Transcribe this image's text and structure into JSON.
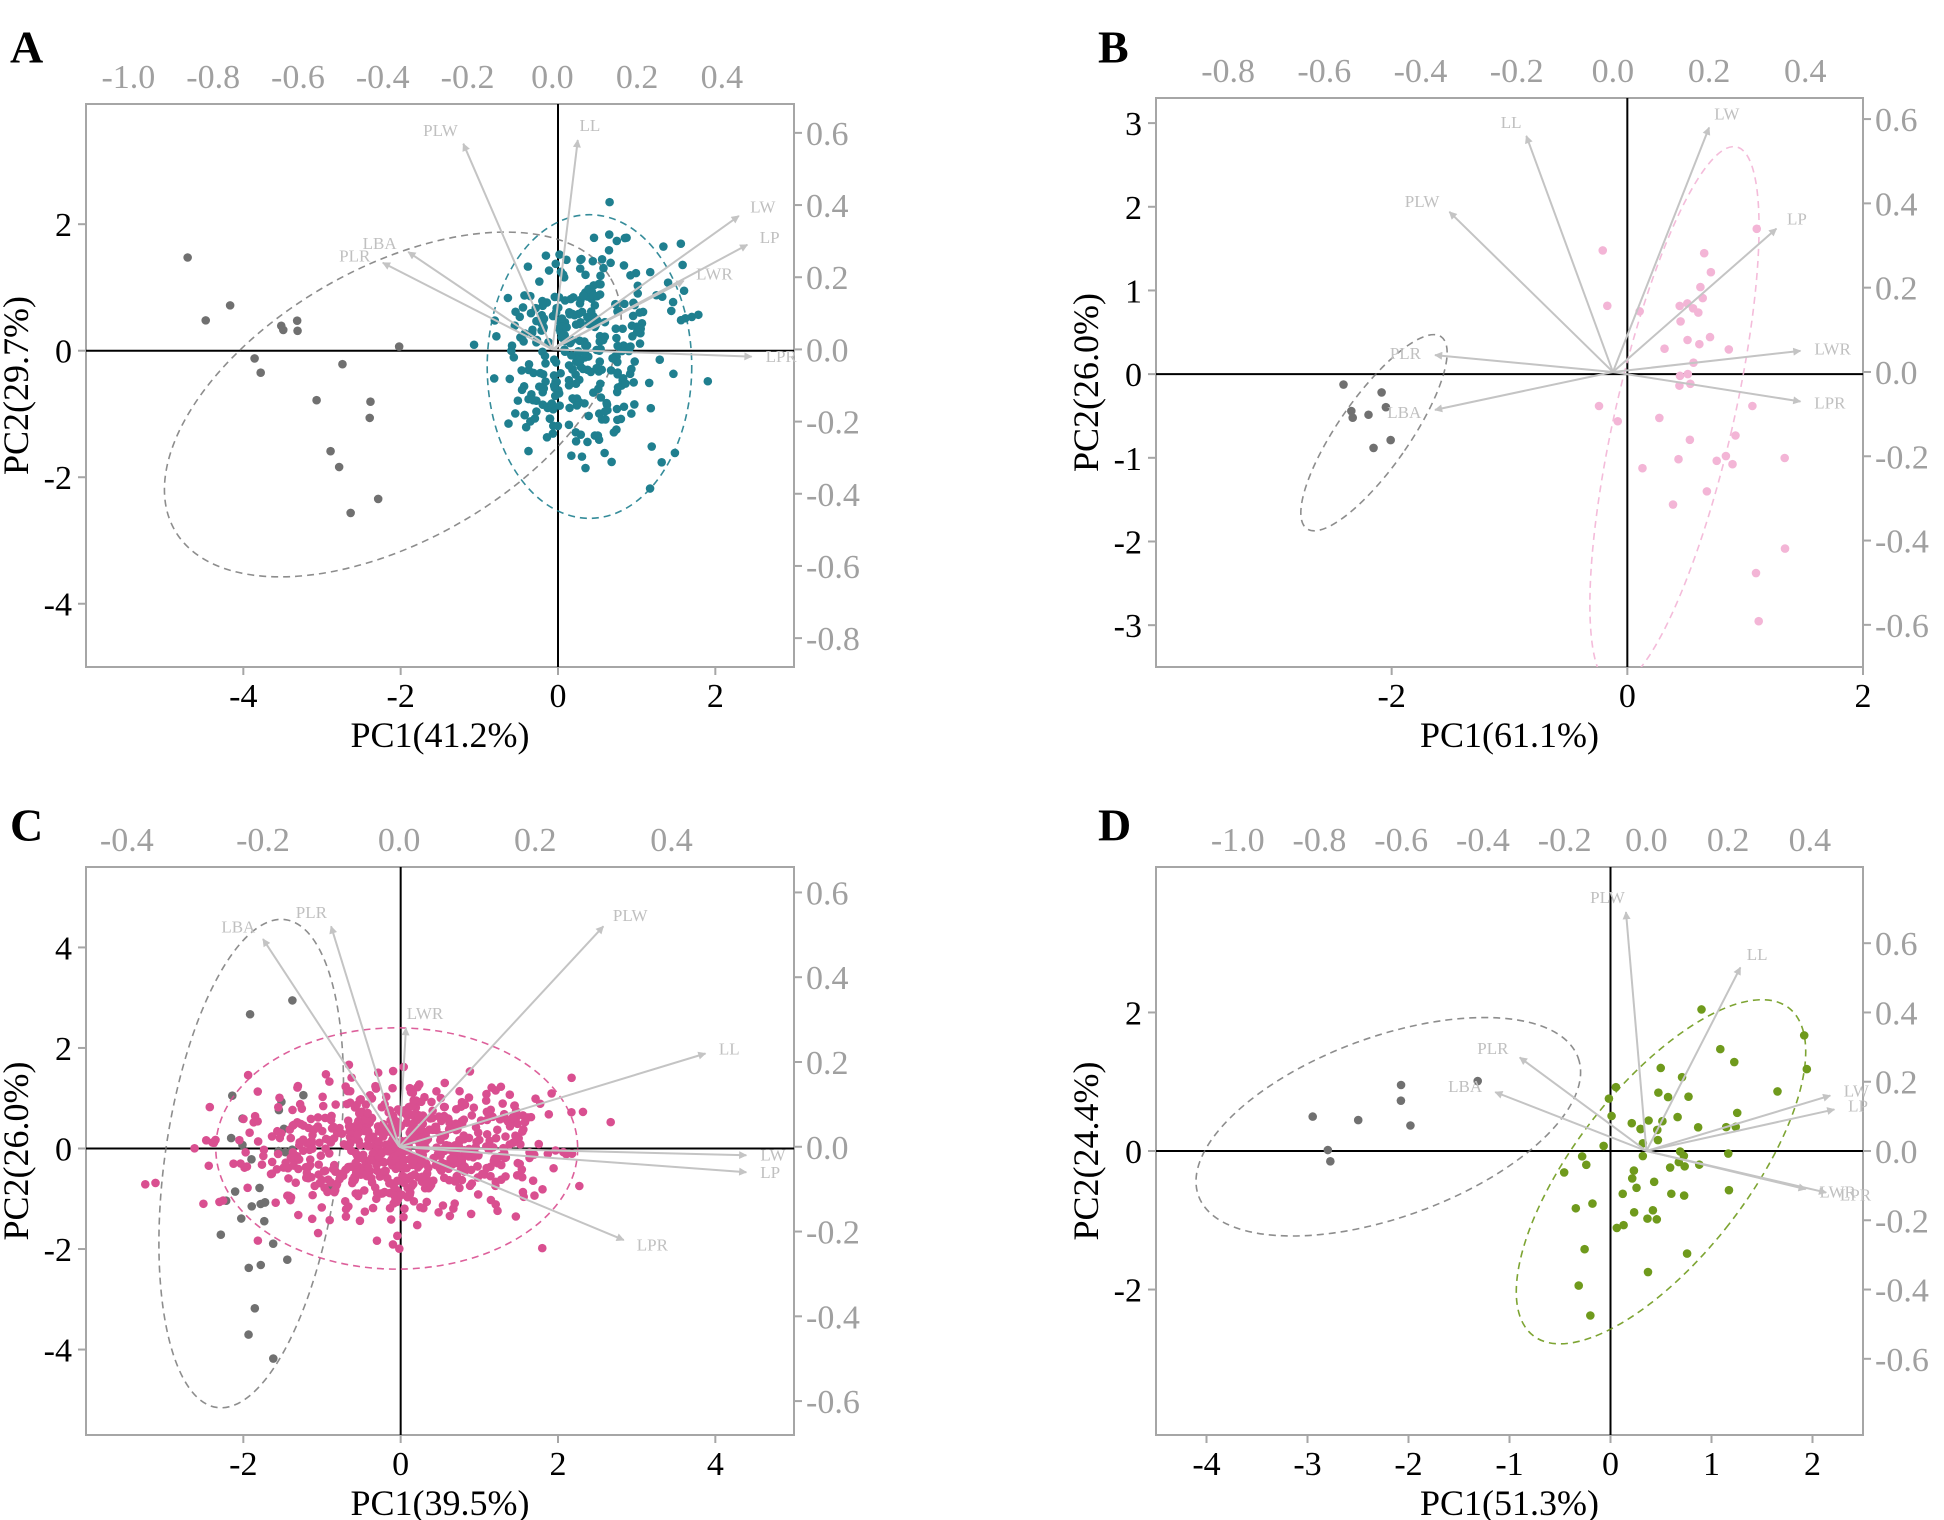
{
  "figure": {
    "panels": [
      "A",
      "B",
      "C",
      "D"
    ]
  },
  "colors": {
    "frame": "#a6a6a6",
    "zero_line": "#000000",
    "arrow": "#c4c4c4",
    "outgroup": "#707070",
    "A": "#1f7f8f",
    "B": "#f3b5d6",
    "C": "#d94f90",
    "D": "#6f9a1c"
  },
  "chart_data": [
    {
      "panel": "A",
      "type": "scatter",
      "title": "",
      "xlabel": "PC1(41.2%)",
      "ylabel": "PC2(29.7%)",
      "xlim": [
        -6,
        3
      ],
      "ylim": [
        -5,
        3.9
      ],
      "x_ticks": [
        "-4",
        "-2",
        "0",
        "2"
      ],
      "y_ticks": [
        "-4",
        "-2",
        "0",
        "2"
      ],
      "loading_xlim": [
        -1.1,
        0.57
      ],
      "loading_ylim": [
        -0.88,
        0.68
      ],
      "top_ticks": [
        "-1.0",
        "-0.8",
        "-0.6",
        "-0.4",
        "-0.2",
        "0.0",
        "0.2",
        "0.4"
      ],
      "right_ticks": [
        "0.6",
        "0.4",
        "0.2",
        "0.0",
        "-0.2",
        "-0.4",
        "-0.6",
        "-0.8"
      ],
      "groups": [
        {
          "name": "outgroup",
          "n": 18,
          "center": [
            -3.2,
            -0.3
          ],
          "sd": [
            0.6,
            1.0
          ],
          "corr": -0.5,
          "ellipse": {
            "cx": -2.1,
            "cy": -0.85,
            "rx": 3.2,
            "ry": 2.15,
            "angle": -30
          }
        },
        {
          "name": "main",
          "n": 330,
          "center": [
            0.3,
            0.0
          ],
          "sd": [
            0.55,
            0.8
          ],
          "corr": 0.05,
          "ellipse": {
            "cx": 0.4,
            "cy": -0.25,
            "rx": 1.3,
            "ry": 2.4,
            "angle": 0
          }
        }
      ],
      "loadings": [
        {
          "label": "PLW",
          "x": -0.21,
          "y": 0.57
        },
        {
          "label": "LL",
          "x": 0.06,
          "y": 0.58
        },
        {
          "label": "LW",
          "x": 0.44,
          "y": 0.37
        },
        {
          "label": "LP",
          "x": 0.46,
          "y": 0.29
        },
        {
          "label": "LWR",
          "x": 0.31,
          "y": 0.19
        },
        {
          "label": "LBA",
          "x": -0.34,
          "y": 0.27
        },
        {
          "label": "PLR",
          "x": -0.4,
          "y": 0.24
        },
        {
          "label": "LPR",
          "x": 0.47,
          "y": -0.02
        }
      ]
    },
    {
      "panel": "B",
      "type": "scatter",
      "title": "",
      "xlabel": "PC1(61.1%)",
      "ylabel": "PC2(26.0%)",
      "xlim": [
        -4,
        2
      ],
      "ylim": [
        -3.5,
        3.3
      ],
      "x_ticks": [
        "-2",
        "0",
        "2"
      ],
      "y_ticks": [
        "-3",
        "-2",
        "-1",
        "0",
        "1",
        "2",
        "3"
      ],
      "loading_xlim": [
        -0.95,
        0.52
      ],
      "loading_ylim": [
        -0.7,
        0.65
      ],
      "top_ticks": [
        "-0.8",
        "-0.6",
        "-0.4",
        "-0.2",
        "0.0",
        "0.2",
        "0.4"
      ],
      "right_ticks": [
        "0.6",
        "0.4",
        "0.2",
        "0.0",
        "-0.2",
        "-0.4",
        "-0.6"
      ],
      "groups": [
        {
          "name": "outgroup",
          "n": 8,
          "center": [
            -2.2,
            -0.55
          ],
          "sd": [
            0.2,
            0.35
          ],
          "corr": -0.8,
          "ellipse": {
            "cx": -2.15,
            "cy": -0.7,
            "rx": 0.3,
            "ry": 1.4,
            "angle": 35
          }
        },
        {
          "name": "main",
          "n": 40,
          "center": [
            0.5,
            -0.1
          ],
          "sd": [
            0.4,
            1.1
          ],
          "corr": -0.3,
          "ellipse": {
            "cx": 0.4,
            "cy": -0.5,
            "rx": 0.5,
            "ry": 3.3,
            "angle": 13
          }
        }
      ],
      "loadings": [
        {
          "label": "LL",
          "x": -0.18,
          "y": 0.56
        },
        {
          "label": "LW",
          "x": 0.2,
          "y": 0.58
        },
        {
          "label": "PLW",
          "x": -0.34,
          "y": 0.38
        },
        {
          "label": "LP",
          "x": 0.34,
          "y": 0.34
        },
        {
          "label": "PLR",
          "x": -0.37,
          "y": 0.04
        },
        {
          "label": "LWR",
          "x": 0.39,
          "y": 0.05
        },
        {
          "label": "LBA",
          "x": -0.37,
          "y": -0.09
        },
        {
          "label": "LPR",
          "x": 0.39,
          "y": -0.07
        }
      ]
    },
    {
      "panel": "C",
      "type": "scatter",
      "title": "",
      "xlabel": "PC1(39.5%)",
      "ylabel": "PC2(26.0%)",
      "xlim": [
        -4,
        5
      ],
      "ylim": [
        -5.7,
        5.6
      ],
      "x_ticks": [
        "-2",
        "0",
        "2",
        "4"
      ],
      "y_ticks": [
        "-4",
        "-2",
        "0",
        "2",
        "4"
      ],
      "loading_xlim": [
        -0.46,
        0.58
      ],
      "loading_ylim": [
        -0.68,
        0.66
      ],
      "top_ticks": [
        "-0.4",
        "-0.2",
        "0.0",
        "0.2",
        "0.4"
      ],
      "right_ticks": [
        "0.6",
        "0.4",
        "0.2",
        "0.0",
        "-0.2",
        "-0.4",
        "-0.6"
      ],
      "groups": [
        {
          "name": "outgroup",
          "n": 32,
          "center": [
            -1.7,
            -0.3
          ],
          "sd": [
            0.35,
            1.6
          ],
          "corr": 0.1,
          "ellipse": {
            "cx": -1.9,
            "cy": -0.3,
            "rx": 1.1,
            "ry": 4.9,
            "angle": 8
          }
        },
        {
          "name": "main",
          "n": 700,
          "center": [
            0.0,
            0.0
          ],
          "sd": [
            0.95,
            0.65
          ],
          "corr": 0.05,
          "ellipse": {
            "cx": -0.05,
            "cy": 0.0,
            "rx": 2.3,
            "ry": 2.4,
            "angle": 0
          }
        }
      ],
      "loadings": [
        {
          "label": "LBA",
          "x": -0.2,
          "y": 0.49
        },
        {
          "label": "PLR",
          "x": -0.1,
          "y": 0.52
        },
        {
          "label": "PLW",
          "x": 0.3,
          "y": 0.52
        },
        {
          "label": "LWR",
          "x": 0.01,
          "y": 0.28
        },
        {
          "label": "LL",
          "x": 0.45,
          "y": 0.22
        },
        {
          "label": "LW",
          "x": 0.51,
          "y": -0.02
        },
        {
          "label": "LP",
          "x": 0.51,
          "y": -0.06
        },
        {
          "label": "LPR",
          "x": 0.33,
          "y": -0.22
        }
      ]
    },
    {
      "panel": "D",
      "type": "scatter",
      "title": "",
      "xlabel": "PC1(51.3%)",
      "ylabel": "PC2(24.4%)",
      "xlim": [
        -4.5,
        2.5
      ],
      "ylim": [
        -4.1,
        4.1
      ],
      "x_ticks": [
        "-4",
        "-3",
        "-2",
        "-1",
        "0",
        "1",
        "2"
      ],
      "y_ticks": [
        "-2",
        "0",
        "2"
      ],
      "loading_xlim": [
        -1.2,
        0.53
      ],
      "loading_ylim": [
        -0.82,
        0.82
      ],
      "top_ticks": [
        "-1.0",
        "-0.8",
        "-0.6",
        "-0.4",
        "-0.2",
        "0.0",
        "0.2",
        "0.4"
      ],
      "right_ticks": [
        "0.6",
        "0.4",
        "0.2",
        "0.0",
        "-0.2",
        "-0.4",
        "-0.6"
      ],
      "groups": [
        {
          "name": "outgroup",
          "n": 8,
          "center": [
            -2.3,
            0.55
          ],
          "sd": [
            0.4,
            0.45
          ],
          "corr": 0.5,
          "ellipse": {
            "cx": -2.2,
            "cy": 0.35,
            "rx": 2.0,
            "ry": 1.3,
            "angle": -20
          }
        },
        {
          "name": "main",
          "n": 60,
          "center": [
            0.4,
            -0.2
          ],
          "sd": [
            0.55,
            1.0
          ],
          "corr": 0.55,
          "ellipse": {
            "cx": 0.5,
            "cy": -0.3,
            "rx": 0.85,
            "ry": 3.0,
            "angle": 38
          }
        }
      ],
      "loadings": [
        {
          "label": "PLW",
          "x": -0.05,
          "y": 0.69
        },
        {
          "label": "LL",
          "x": 0.23,
          "y": 0.53
        },
        {
          "label": "PLR",
          "x": -0.31,
          "y": 0.27
        },
        {
          "label": "LBA",
          "x": -0.37,
          "y": 0.17
        },
        {
          "label": "LW",
          "x": 0.45,
          "y": 0.16
        },
        {
          "label": "LP",
          "x": 0.46,
          "y": 0.12
        },
        {
          "label": "LWR",
          "x": 0.39,
          "y": -0.11
        },
        {
          "label": "LPR",
          "x": 0.44,
          "y": -0.12
        }
      ]
    }
  ]
}
